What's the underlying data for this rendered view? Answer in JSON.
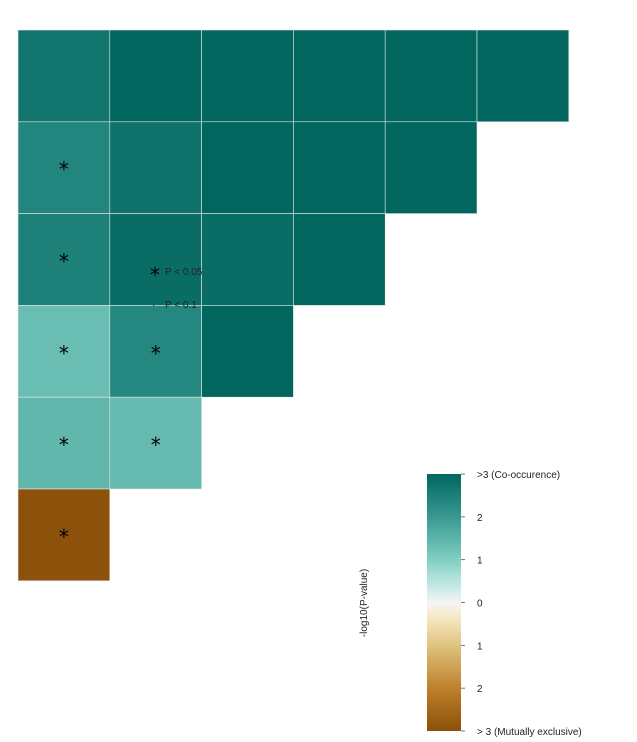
{
  "chart_data": {
    "type": "heatmap",
    "title": "",
    "layout": "lower-triangle",
    "rows": 6,
    "cols": 6,
    "colors": {
      "co_occurrence_max": "#00665e",
      "neutral": "#f5f5f5",
      "mutually_exclusive_max": "#8c510a"
    },
    "value_range": [
      -3,
      3
    ],
    "cells": [
      {
        "row": 0,
        "col": 0,
        "value": 2.7,
        "sig": ""
      },
      {
        "row": 0,
        "col": 1,
        "value": 3,
        "sig": ""
      },
      {
        "row": 0,
        "col": 2,
        "value": 3,
        "sig": ""
      },
      {
        "row": 0,
        "col": 3,
        "value": 3,
        "sig": ""
      },
      {
        "row": 0,
        "col": 4,
        "value": 3,
        "sig": ""
      },
      {
        "row": 0,
        "col": 5,
        "value": 3,
        "sig": ""
      },
      {
        "row": 1,
        "col": 0,
        "value": 2.35,
        "sig": "*"
      },
      {
        "row": 1,
        "col": 1,
        "value": 2.75,
        "sig": ""
      },
      {
        "row": 1,
        "col": 2,
        "value": 3,
        "sig": ""
      },
      {
        "row": 1,
        "col": 3,
        "value": 3,
        "sig": ""
      },
      {
        "row": 1,
        "col": 4,
        "value": 3,
        "sig": ""
      },
      {
        "row": 2,
        "col": 0,
        "value": 2.45,
        "sig": "*"
      },
      {
        "row": 2,
        "col": 1,
        "value": 2.85,
        "sig": ""
      },
      {
        "row": 2,
        "col": 2,
        "value": 2.85,
        "sig": ""
      },
      {
        "row": 2,
        "col": 3,
        "value": 3,
        "sig": ""
      },
      {
        "row": 3,
        "col": 0,
        "value": 1.3,
        "sig": "*"
      },
      {
        "row": 3,
        "col": 1,
        "value": 2.3,
        "sig": "*"
      },
      {
        "row": 3,
        "col": 2,
        "value": 3,
        "sig": ""
      },
      {
        "row": 4,
        "col": 0,
        "value": 1.4,
        "sig": "*"
      },
      {
        "row": 4,
        "col": 1,
        "value": 1.35,
        "sig": "*"
      },
      {
        "row": 5,
        "col": 0,
        "value": -3,
        "sig": "*"
      }
    ],
    "significance_legend": [
      {
        "symbol": "*",
        "label": "P < 0.05"
      },
      {
        "symbol": "·",
        "label": "P < 0.1"
      }
    ],
    "colorbar": {
      "title": "-log10(P-value)",
      "ticks": [
        {
          "value": 3,
          "label": ">3 (Co-occurence)"
        },
        {
          "value": 2,
          "label": "2"
        },
        {
          "value": 1,
          "label": "1"
        },
        {
          "value": 0,
          "label": "0"
        },
        {
          "value": -1,
          "label": "1"
        },
        {
          "value": -2,
          "label": "2"
        },
        {
          "value": -3,
          "label": "> 3 (Mutually exclusive)"
        }
      ]
    }
  }
}
